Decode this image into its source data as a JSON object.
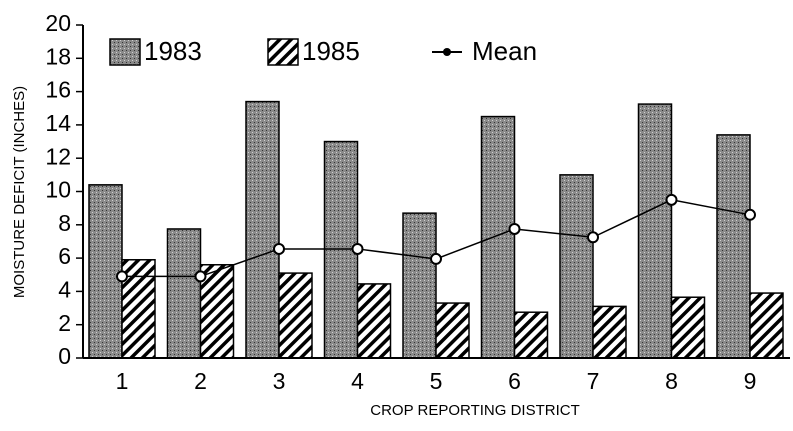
{
  "chart_data": {
    "type": "bar",
    "xlabel": "CROP REPORTING DISTRICT",
    "ylabel": "MOISTURE DEFICIT (INCHES)",
    "categories": [
      "1",
      "2",
      "3",
      "4",
      "5",
      "6",
      "7",
      "8",
      "9"
    ],
    "series": [
      {
        "name": "1983",
        "type": "bar",
        "color": "#8a8a8a",
        "pattern": "stipple",
        "values": [
          10.4,
          7.75,
          15.4,
          13.0,
          8.7,
          14.5,
          11.0,
          15.25,
          13.4
        ]
      },
      {
        "name": "1985",
        "type": "bar",
        "color": "#000000",
        "pattern": "hatch",
        "values": [
          5.9,
          5.6,
          5.1,
          4.45,
          3.3,
          2.75,
          3.1,
          3.65,
          3.9
        ]
      },
      {
        "name": "Mean",
        "type": "line",
        "color": "#000000",
        "values": [
          4.9,
          4.9,
          6.55,
          6.55,
          5.95,
          7.75,
          7.25,
          9.5,
          8.6
        ]
      }
    ],
    "ylim": [
      0,
      20
    ],
    "yticks": [
      0,
      2,
      4,
      6,
      8,
      10,
      12,
      14,
      16,
      18,
      20
    ],
    "grid": false,
    "legend": "top-left"
  }
}
